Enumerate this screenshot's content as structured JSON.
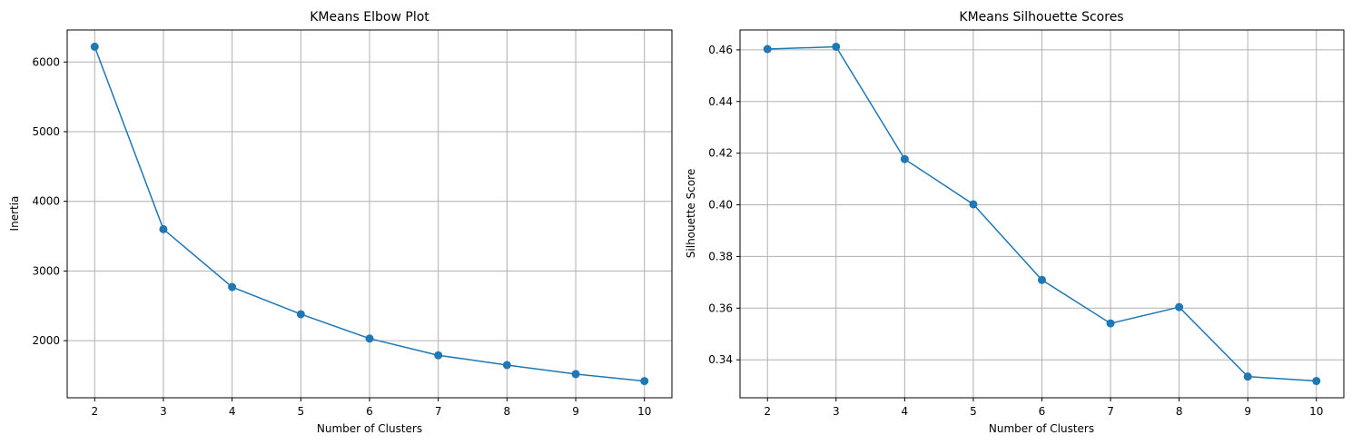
{
  "chart_data": [
    {
      "type": "line",
      "title": "KMeans Elbow Plot",
      "xlabel": "Number of Clusters",
      "ylabel": "Inertia",
      "x": [
        2,
        3,
        4,
        5,
        6,
        7,
        8,
        9,
        10
      ],
      "series": [
        {
          "values": [
            6220,
            3600,
            2770,
            2380,
            2030,
            1790,
            1650,
            1520,
            1420
          ],
          "color": "#1f77b4"
        }
      ],
      "xticks": [
        2,
        3,
        4,
        5,
        6,
        7,
        8,
        9,
        10
      ],
      "yticks": [
        2000,
        3000,
        4000,
        5000,
        6000
      ],
      "xlim": [
        1.6,
        10.4
      ],
      "ylim": [
        1180,
        6460
      ],
      "grid": true,
      "marker": "circle"
    },
    {
      "type": "line",
      "title": "KMeans Silhouette Scores",
      "xlabel": "Number of Clusters",
      "ylabel": "Silhouette Score",
      "x": [
        2,
        3,
        4,
        5,
        6,
        7,
        8,
        9,
        10
      ],
      "series": [
        {
          "values": [
            0.4603,
            0.4612,
            0.4177,
            0.4002,
            0.3709,
            0.3541,
            0.3604,
            0.3335,
            0.3318
          ],
          "color": "#1f77b4"
        }
      ],
      "xticks": [
        2,
        3,
        4,
        5,
        6,
        7,
        8,
        9,
        10
      ],
      "yticks": [
        "0.34",
        "0.36",
        "0.38",
        "0.40",
        "0.42",
        "0.44",
        "0.46"
      ],
      "xlim": [
        1.6,
        10.4
      ],
      "ylim": [
        0.3253,
        0.4677
      ],
      "grid": true,
      "marker": "circle"
    }
  ]
}
